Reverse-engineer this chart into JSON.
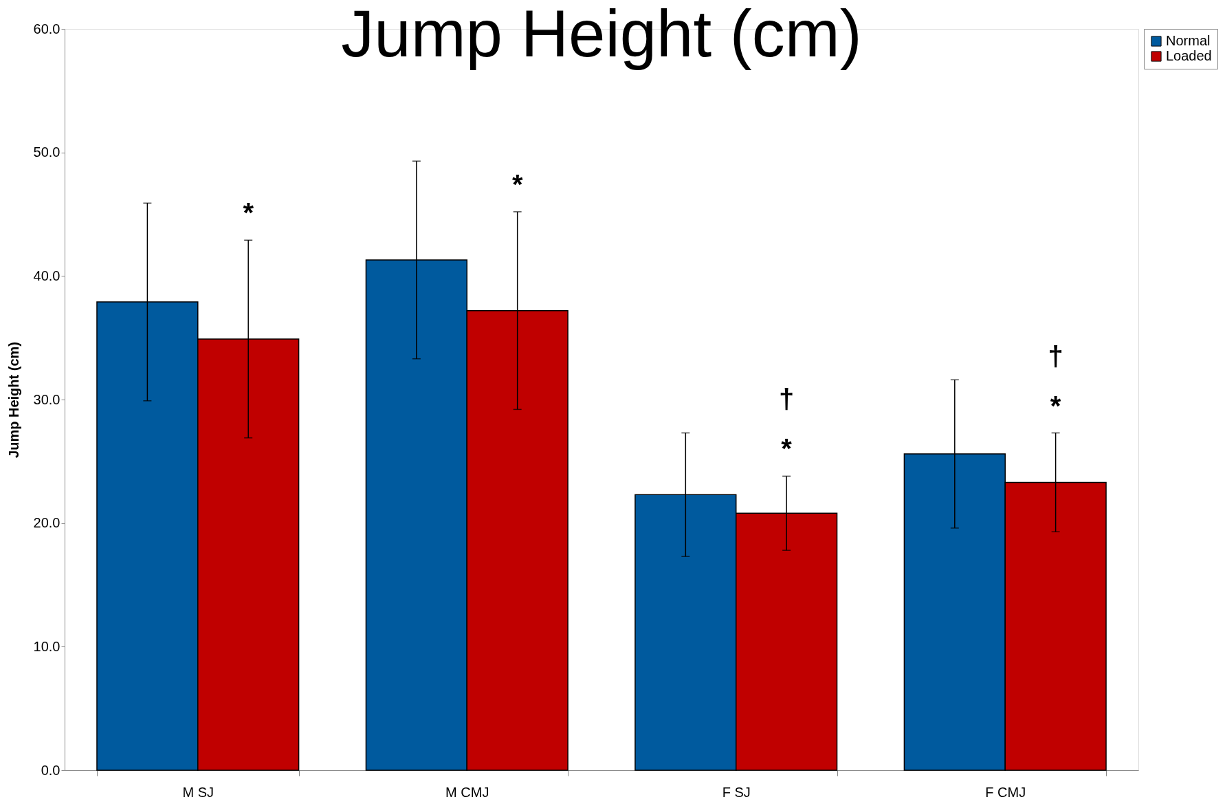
{
  "chart_data": {
    "type": "bar",
    "title": "Jump Height (cm)",
    "ylabel": "Jump Height (cm)",
    "categories": [
      "M SJ",
      "M CMJ",
      "F SJ",
      "F CMJ"
    ],
    "series": [
      {
        "name": "Normal",
        "color": "#005a9e",
        "values": [
          37.9,
          41.3,
          22.3,
          25.6
        ],
        "errors": [
          8.0,
          8.0,
          5.0,
          6.0
        ]
      },
      {
        "name": "Loaded",
        "color": "#c00000",
        "values": [
          34.9,
          37.2,
          20.8,
          23.3
        ],
        "errors": [
          8.0,
          8.0,
          3.0,
          4.0
        ]
      }
    ],
    "ylim": [
      0,
      60
    ],
    "yticks": [
      {
        "value": 0,
        "label": "0.0"
      },
      {
        "value": 10,
        "label": "10.0"
      },
      {
        "value": 20,
        "label": "20.0"
      },
      {
        "value": 30,
        "label": "30.0"
      },
      {
        "value": 40,
        "label": "40.0"
      },
      {
        "value": 50,
        "label": "50.0"
      },
      {
        "value": 60,
        "label": "60.0"
      }
    ],
    "annotations": [
      "*",
      "*",
      "†\n*",
      "†\n*"
    ],
    "grid": false,
    "legend": "right"
  }
}
